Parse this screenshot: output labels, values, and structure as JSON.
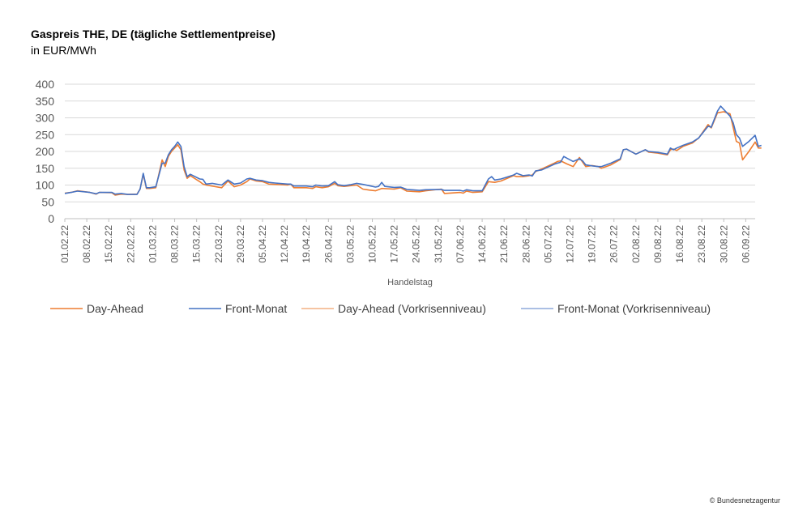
{
  "header": {
    "title": "Gaspreis THE, DE (tägliche Settlementpreise)",
    "subtitle": "in EUR/MWh"
  },
  "footer": {
    "credit": "© Bundesnetzagentur"
  },
  "colors": {
    "day_ahead": "#ED7D31",
    "front_monat": "#4472C4",
    "day_ahead_pre": "#F4B183",
    "front_monat_pre": "#8FAADC",
    "grid": "#D9D9D9"
  },
  "chart_data": {
    "type": "line",
    "xlabel": "Handelstag",
    "ylabel": "",
    "ylim": [
      0,
      400
    ],
    "yticks": [
      0,
      50,
      100,
      150,
      200,
      250,
      300,
      350,
      400
    ],
    "grid": true,
    "legend_position": "bottom",
    "x_tick_labels": [
      "01.02.22",
      "08.02.22",
      "15.02.22",
      "22.02.22",
      "01.03.22",
      "08.03.22",
      "15.03.22",
      "22.03.22",
      "29.03.22",
      "05.04.22",
      "12.04.22",
      "19.04.22",
      "26.04.22",
      "03.05.22",
      "10.05.22",
      "17.05.22",
      "24.05.22",
      "31.05.22",
      "07.06.22",
      "14.06.22",
      "21.06.22",
      "28.06.22",
      "05.07.22",
      "12.07.22",
      "19.07.22",
      "26.07.22",
      "02.08.22",
      "09.08.22",
      "16.08.22",
      "23.08.22",
      "30.08.22",
      "06.09.22"
    ],
    "x_start": "01.02.22",
    "x_end": "09.09.22",
    "series": [
      {
        "name": "Day-Ahead",
        "color": "#ED7D31",
        "points": [
          [
            "01.02.22",
            76
          ],
          [
            "03.02.22",
            78
          ],
          [
            "05.02.22",
            83
          ],
          [
            "09.02.22",
            78
          ],
          [
            "11.02.22",
            73
          ],
          [
            "12.02.22",
            78
          ],
          [
            "16.02.22",
            77
          ],
          [
            "17.02.22",
            70
          ],
          [
            "19.02.22",
            73
          ],
          [
            "21.02.22",
            72
          ],
          [
            "24.02.22",
            73
          ],
          [
            "25.02.22",
            88
          ],
          [
            "26.02.22",
            132
          ],
          [
            "27.02.22",
            90
          ],
          [
            "28.02.22",
            90
          ],
          [
            "02.03.22",
            92
          ],
          [
            "04.03.22",
            175
          ],
          [
            "05.03.22",
            155
          ],
          [
            "06.03.22",
            185
          ],
          [
            "07.03.22",
            200
          ],
          [
            "08.03.22",
            210
          ],
          [
            "09.03.22",
            220
          ],
          [
            "10.03.22",
            205
          ],
          [
            "11.03.22",
            145
          ],
          [
            "12.03.22",
            120
          ],
          [
            "13.03.22",
            128
          ],
          [
            "16.03.22",
            110
          ],
          [
            "17.03.22",
            103
          ],
          [
            "18.03.22",
            100
          ],
          [
            "23.03.22",
            92
          ],
          [
            "25.03.22",
            112
          ],
          [
            "27.03.22",
            95
          ],
          [
            "29.03.22",
            100
          ],
          [
            "31.03.22",
            110
          ],
          [
            "01.04.22",
            118
          ],
          [
            "03.04.22",
            112
          ],
          [
            "05.04.22",
            110
          ],
          [
            "07.04.22",
            103
          ],
          [
            "09.04.22",
            102
          ],
          [
            "13.04.22",
            100
          ],
          [
            "14.04.22",
            103
          ],
          [
            "15.04.22",
            92
          ],
          [
            "19.04.22",
            92
          ],
          [
            "21.04.22",
            90
          ],
          [
            "22.04.22",
            95
          ],
          [
            "24.04.22",
            92
          ],
          [
            "26.04.22",
            95
          ],
          [
            "28.04.22",
            105
          ],
          [
            "29.04.22",
            98
          ],
          [
            "01.05.22",
            96
          ],
          [
            "03.05.22",
            98
          ],
          [
            "05.05.22",
            100
          ],
          [
            "07.05.22",
            88
          ],
          [
            "09.05.22",
            85
          ],
          [
            "11.05.22",
            83
          ],
          [
            "13.05.22",
            90
          ],
          [
            "17.05.22",
            88
          ],
          [
            "19.05.22",
            92
          ],
          [
            "21.05.22",
            82
          ],
          [
            "25.05.22",
            80
          ],
          [
            "27.05.22",
            83
          ],
          [
            "01.06.22",
            88
          ],
          [
            "02.06.22",
            75
          ],
          [
            "07.06.22",
            78
          ],
          [
            "08.06.22",
            76
          ],
          [
            "09.06.22",
            82
          ],
          [
            "11.06.22",
            78
          ],
          [
            "14.06.22",
            80
          ],
          [
            "16.06.22",
            110
          ],
          [
            "18.06.22",
            108
          ],
          [
            "20.06.22",
            112
          ],
          [
            "24.06.22",
            128
          ],
          [
            "25.06.22",
            125
          ],
          [
            "27.06.22",
            125
          ],
          [
            "29.06.22",
            128
          ],
          [
            "30.06.22",
            130
          ],
          [
            "01.07.22",
            140
          ],
          [
            "03.07.22",
            148
          ],
          [
            "07.07.22",
            165
          ],
          [
            "08.07.22",
            170
          ],
          [
            "09.07.22",
            172
          ],
          [
            "11.07.22",
            163
          ],
          [
            "13.07.22",
            155
          ],
          [
            "15.07.22",
            182
          ],
          [
            "17.07.22",
            155
          ],
          [
            "19.07.22",
            158
          ],
          [
            "21.07.22",
            155
          ],
          [
            "22.07.22",
            150
          ],
          [
            "25.07.22",
            160
          ],
          [
            "28.07.22",
            176
          ],
          [
            "29.07.22",
            205
          ],
          [
            "30.07.22",
            207
          ],
          [
            "02.08.22",
            192
          ],
          [
            "05.08.22",
            205
          ],
          [
            "06.08.22",
            198
          ],
          [
            "09.08.22",
            195
          ],
          [
            "12.08.22",
            190
          ],
          [
            "13.08.22",
            205
          ],
          [
            "14.08.22",
            207
          ],
          [
            "15.08.22",
            203
          ],
          [
            "17.08.22",
            215
          ],
          [
            "20.08.22",
            225
          ],
          [
            "22.08.22",
            240
          ],
          [
            "25.08.22",
            280
          ],
          [
            "26.08.22",
            270
          ],
          [
            "28.08.22",
            315
          ],
          [
            "30.08.22",
            318
          ],
          [
            "01.09.22",
            312
          ],
          [
            "03.09.22",
            230
          ],
          [
            "04.09.22",
            225
          ],
          [
            "05.09.22",
            175
          ],
          [
            "07.09.22",
            200
          ],
          [
            "09.09.22",
            228
          ],
          [
            "10.09.22",
            210
          ],
          [
            "11.09.22",
            210
          ]
        ]
      },
      {
        "name": "Front-Monat",
        "color": "#4472C4",
        "points": [
          [
            "01.02.22",
            75
          ],
          [
            "03.02.22",
            78
          ],
          [
            "05.02.22",
            82
          ],
          [
            "09.02.22",
            78
          ],
          [
            "11.02.22",
            74
          ],
          [
            "12.02.22",
            78
          ],
          [
            "16.02.22",
            78
          ],
          [
            "17.02.22",
            73
          ],
          [
            "19.02.22",
            75
          ],
          [
            "21.02.22",
            72
          ],
          [
            "24.02.22",
            72
          ],
          [
            "25.02.22",
            88
          ],
          [
            "26.02.22",
            135
          ],
          [
            "27.02.22",
            92
          ],
          [
            "28.02.22",
            92
          ],
          [
            "02.03.22",
            95
          ],
          [
            "04.03.22",
            165
          ],
          [
            "05.03.22",
            165
          ],
          [
            "06.03.22",
            190
          ],
          [
            "07.03.22",
            205
          ],
          [
            "08.03.22",
            215
          ],
          [
            "09.03.22",
            228
          ],
          [
            "10.03.22",
            215
          ],
          [
            "11.03.22",
            155
          ],
          [
            "12.03.22",
            125
          ],
          [
            "13.03.22",
            132
          ],
          [
            "16.03.22",
            118
          ],
          [
            "17.03.22",
            117
          ],
          [
            "18.03.22",
            103
          ],
          [
            "20.03.22",
            105
          ],
          [
            "23.03.22",
            100
          ],
          [
            "25.03.22",
            115
          ],
          [
            "27.03.22",
            103
          ],
          [
            "29.03.22",
            106
          ],
          [
            "31.03.22",
            118
          ],
          [
            "01.04.22",
            120
          ],
          [
            "03.04.22",
            115
          ],
          [
            "05.04.22",
            113
          ],
          [
            "07.04.22",
            108
          ],
          [
            "09.04.22",
            106
          ],
          [
            "13.04.22",
            103
          ],
          [
            "14.04.22",
            103
          ],
          [
            "15.04.22",
            97
          ],
          [
            "19.04.22",
            97
          ],
          [
            "21.04.22",
            95
          ],
          [
            "22.04.22",
            100
          ],
          [
            "24.04.22",
            97
          ],
          [
            "26.04.22",
            98
          ],
          [
            "28.04.22",
            110
          ],
          [
            "29.04.22",
            101
          ],
          [
            "01.05.22",
            98
          ],
          [
            "03.05.22",
            101
          ],
          [
            "05.05.22",
            105
          ],
          [
            "07.05.22",
            102
          ],
          [
            "09.05.22",
            98
          ],
          [
            "11.05.22",
            94
          ],
          [
            "12.05.22",
            96
          ],
          [
            "13.05.22",
            108
          ],
          [
            "14.05.22",
            96
          ],
          [
            "17.05.22",
            93
          ],
          [
            "19.05.22",
            94
          ],
          [
            "21.05.22",
            87
          ],
          [
            "25.05.22",
            84
          ],
          [
            "27.05.22",
            86
          ],
          [
            "01.06.22",
            87
          ],
          [
            "02.06.22",
            84
          ],
          [
            "07.06.22",
            84
          ],
          [
            "08.06.22",
            82
          ],
          [
            "09.06.22",
            86
          ],
          [
            "11.06.22",
            83
          ],
          [
            "14.06.22",
            83
          ],
          [
            "16.06.22",
            118
          ],
          [
            "17.06.22",
            125
          ],
          [
            "18.06.22",
            115
          ],
          [
            "20.06.22",
            118
          ],
          [
            "24.06.22",
            130
          ],
          [
            "25.06.22",
            135
          ],
          [
            "27.06.22",
            128
          ],
          [
            "29.06.22",
            130
          ],
          [
            "30.06.22",
            127
          ],
          [
            "01.07.22",
            142
          ],
          [
            "03.07.22",
            145
          ],
          [
            "07.07.22",
            162
          ],
          [
            "08.07.22",
            165
          ],
          [
            "09.07.22",
            168
          ],
          [
            "10.07.22",
            185
          ],
          [
            "11.07.22",
            180
          ],
          [
            "13.07.22",
            170
          ],
          [
            "15.07.22",
            178
          ],
          [
            "16.07.22",
            172
          ],
          [
            "17.07.22",
            160
          ],
          [
            "19.07.22",
            157
          ],
          [
            "21.07.22",
            155
          ],
          [
            "22.07.22",
            155
          ],
          [
            "25.07.22",
            165
          ],
          [
            "28.07.22",
            178
          ],
          [
            "29.07.22",
            205
          ],
          [
            "30.07.22",
            207
          ],
          [
            "02.08.22",
            192
          ],
          [
            "05.08.22",
            205
          ],
          [
            "06.08.22",
            200
          ],
          [
            "09.08.22",
            197
          ],
          [
            "12.08.22",
            192
          ],
          [
            "13.08.22",
            210
          ],
          [
            "14.08.22",
            205
          ],
          [
            "15.08.22",
            210
          ],
          [
            "17.08.22",
            218
          ],
          [
            "20.08.22",
            228
          ],
          [
            "22.08.22",
            240
          ],
          [
            "25.08.22",
            275
          ],
          [
            "26.08.22",
            272
          ],
          [
            "28.08.22",
            320
          ],
          [
            "29.08.22",
            335
          ],
          [
            "01.09.22",
            305
          ],
          [
            "02.09.22",
            285
          ],
          [
            "03.09.22",
            250
          ],
          [
            "04.09.22",
            240
          ],
          [
            "05.09.22",
            215
          ],
          [
            "07.09.22",
            230
          ],
          [
            "09.09.22",
            248
          ],
          [
            "10.09.22",
            215
          ],
          [
            "11.09.22",
            218
          ]
        ]
      }
    ],
    "legend": [
      "Day-Ahead",
      "Front-Monat",
      "Day-Ahead (Vorkrisenniveau)",
      "Front-Monat (Vorkrisenniveau)"
    ]
  }
}
